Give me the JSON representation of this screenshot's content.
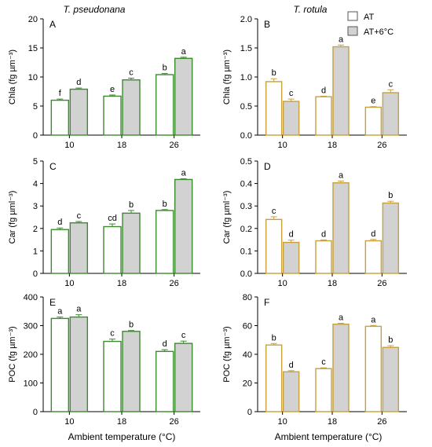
{
  "figure": {
    "species_left": "T. pseudonana",
    "species_right": "T. rotula",
    "xlabel": "Ambient temperature (°C)",
    "legend": {
      "placement": "top-right",
      "entries": [
        "AT",
        "AT+6°C"
      ]
    },
    "colors": {
      "left_edge": "#3b8a2e",
      "right_edge": "#c8a03c",
      "at_fill": "#ffffff",
      "warm_fill": "#d2d2d2",
      "error_bar": "#000000"
    }
  },
  "chart_data": [
    {
      "panel": "A",
      "type": "bar",
      "column": "left",
      "categories": [
        "10",
        "18",
        "26"
      ],
      "ylabel": "Chla (fg µm⁻³)",
      "ylim": [
        0,
        20
      ],
      "yticks": [
        0,
        5,
        10,
        15,
        20
      ],
      "series": [
        {
          "name": "AT",
          "values": [
            6.0,
            6.7,
            10.4
          ],
          "errors": [
            0.2,
            0.2,
            0.2
          ],
          "letters": [
            "f",
            "e",
            "b"
          ]
        },
        {
          "name": "AT+6°C",
          "values": [
            7.9,
            9.5,
            13.2
          ],
          "errors": [
            0.2,
            0.3,
            0.2
          ],
          "letters": [
            "d",
            "c",
            "a"
          ]
        }
      ]
    },
    {
      "panel": "B",
      "type": "bar",
      "column": "right",
      "categories": [
        "10",
        "18",
        "26"
      ],
      "ylabel": "Chla (fg µm⁻³)",
      "ylim": [
        0,
        2.0
      ],
      "yticks": [
        0.0,
        0.5,
        1.0,
        1.5,
        2.0
      ],
      "series": [
        {
          "name": "AT",
          "values": [
            0.92,
            0.66,
            0.48
          ],
          "errors": [
            0.05,
            0.01,
            0.01
          ],
          "letters": [
            "b",
            "d",
            "e"
          ]
        },
        {
          "name": "AT+6°C",
          "values": [
            0.58,
            1.52,
            0.73
          ],
          "errors": [
            0.04,
            0.03,
            0.05
          ],
          "letters": [
            "c",
            "a",
            "c"
          ]
        }
      ]
    },
    {
      "panel": "C",
      "type": "bar",
      "column": "left",
      "categories": [
        "10",
        "18",
        "26"
      ],
      "ylabel": "Car (fg µml⁻³)",
      "ylim": [
        0,
        5
      ],
      "yticks": [
        0,
        1,
        2,
        3,
        4,
        5
      ],
      "series": [
        {
          "name": "AT",
          "values": [
            1.95,
            2.08,
            2.8
          ],
          "errors": [
            0.07,
            0.12,
            0.04
          ],
          "letters": [
            "d",
            "cd",
            "b"
          ]
        },
        {
          "name": "AT+6°C",
          "values": [
            2.25,
            2.68,
            4.18
          ],
          "errors": [
            0.06,
            0.12,
            0.03
          ],
          "letters": [
            "c",
            "b",
            "a"
          ]
        }
      ]
    },
    {
      "panel": "D",
      "type": "bar",
      "column": "right",
      "categories": [
        "10",
        "18",
        "26"
      ],
      "ylabel": "Car (fg µml⁻³)",
      "ylim": [
        0,
        0.5
      ],
      "yticks": [
        0.0,
        0.1,
        0.2,
        0.3,
        0.4,
        0.5
      ],
      "series": [
        {
          "name": "AT",
          "values": [
            0.24,
            0.145,
            0.145
          ],
          "errors": [
            0.012,
            0.004,
            0.006
          ],
          "letters": [
            "c",
            "d",
            "d"
          ]
        },
        {
          "name": "AT+6°C",
          "values": [
            0.138,
            0.403,
            0.313
          ],
          "errors": [
            0.01,
            0.008,
            0.008
          ],
          "letters": [
            "d",
            "a",
            "b"
          ]
        }
      ]
    },
    {
      "panel": "E",
      "type": "bar",
      "column": "left",
      "categories": [
        "10",
        "18",
        "26"
      ],
      "ylabel": "POC (fg µm⁻³)",
      "ylim": [
        0,
        400
      ],
      "yticks": [
        0,
        100,
        200,
        300,
        400
      ],
      "series": [
        {
          "name": "AT",
          "values": [
            325,
            245,
            210
          ],
          "errors": [
            5,
            8,
            6
          ],
          "letters": [
            "a",
            "c",
            "d"
          ]
        },
        {
          "name": "AT+6°C",
          "values": [
            330,
            280,
            238
          ],
          "errors": [
            8,
            3,
            8
          ],
          "letters": [
            "a",
            "b",
            "c"
          ]
        }
      ]
    },
    {
      "panel": "F",
      "type": "bar",
      "column": "right",
      "categories": [
        "10",
        "18",
        "26"
      ],
      "ylabel": "POC (fg µm⁻³)",
      "ylim": [
        0,
        80
      ],
      "yticks": [
        0,
        20,
        40,
        60,
        80
      ],
      "series": [
        {
          "name": "AT",
          "values": [
            46.5,
            30.0,
            59.5
          ],
          "errors": [
            1.0,
            0.6,
            0.6
          ],
          "letters": [
            "b",
            "c",
            "a"
          ]
        },
        {
          "name": "AT+6°C",
          "values": [
            27.8,
            61.0,
            44.8
          ],
          "errors": [
            0.8,
            0.6,
            1.2
          ],
          "letters": [
            "d",
            "a",
            "b"
          ]
        }
      ]
    }
  ]
}
